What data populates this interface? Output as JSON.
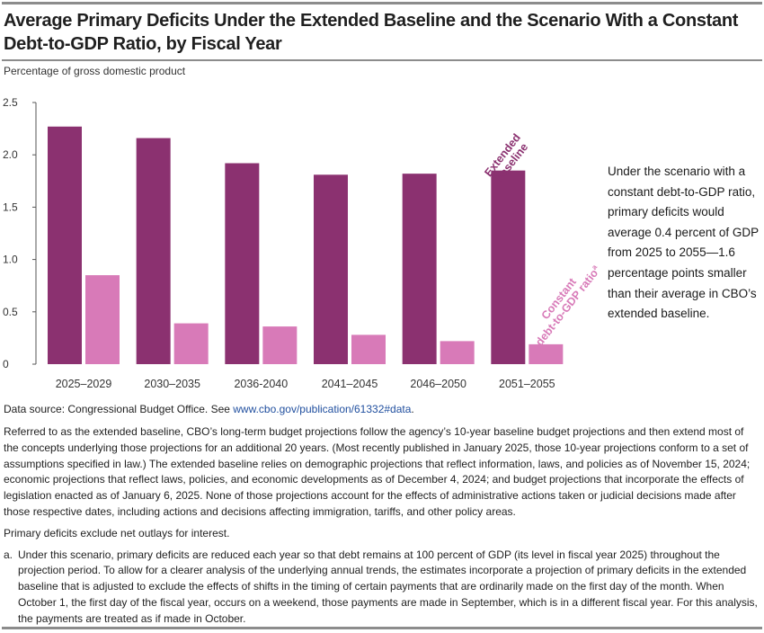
{
  "title": "Average Primary Deficits Under the Extended Baseline and the Scenario With a Constant Debt-to-GDP Ratio, by Fiscal Year",
  "units_label": "Percentage of gross domestic product",
  "annotation": "Under the scenario with a constant debt-to-GDP ratio, primary deficits would average 0.4 percent of GDP from 2025 to 2055—1.6 percentage points smaller than their average in CBO’s extended baseline.",
  "source": {
    "prefix": "Data source: Congressional Budget Office. See ",
    "link": "www.cbo.gov/publication/61332#data",
    "suffix": "."
  },
  "notes": {
    "extended_baseline": "Referred to as the extended baseline, CBO’s long-term budget projections follow the agency’s 10-year baseline budget projections and then extend most of the concepts underlying those projections for an additional 20 years. (Most recently published in January 2025, those 10-year projections conform to a set of assumptions specified in law.) The extended baseline relies on demographic projections that reflect information, laws, and policies as of November 15, 2024; economic projections that reflect laws, policies, and economic developments as of December 4, 2024; and budget projections that incorporate the effects of legislation enacted as of January 6, 2025. None of those projections account for the effects of administrative actions taken or judicial decisions made after those respective dates, including actions and decisions affecting immigration, tariffs, and other policy areas.",
    "primary_deficits": "Primary deficits exclude net outlays for interest.",
    "footnote_marker": "a.",
    "footnote_a": "Under this scenario, primary deficits are reduced each year so that debt remains at 100 percent of GDP (its level in fiscal year 2025) throughout the projection period. To allow for a clearer analysis of the underlying annual trends, the estimates incorporate a projection of primary deficits in the extended baseline that is adjusted to exclude the effects of shifts in the timing of certain payments that are ordinarily made on the first day of the month. When October 1, the first day of the fiscal year, occurs on a weekend, those payments are made in September, which is in a different fiscal year. For this analysis, the payments are treated as if made in October."
  },
  "colors": {
    "baseline": "#8b3170",
    "constant": "#d87ab8",
    "axis": "#555555"
  },
  "chart_data": {
    "type": "bar",
    "title": "Average Primary Deficits Under the Extended Baseline and the Scenario With a Constant Debt-to-GDP Ratio, by Fiscal Year",
    "ylabel": "Percentage of gross domestic product",
    "xlabel": "",
    "ylim": [
      0,
      2.5
    ],
    "yticks": [
      "0",
      "0.5",
      "1.0",
      "1.5",
      "2.0",
      "2.5"
    ],
    "categories": [
      "2025–2029",
      "2030–2035",
      "2036-2040",
      "2041–2045",
      "2046–2050",
      "2051–2055"
    ],
    "series": [
      {
        "name": "Extended baseline",
        "label_lines": [
          "Extended",
          "baseline"
        ],
        "values": [
          2.27,
          2.16,
          1.92,
          1.81,
          1.82,
          1.85
        ]
      },
      {
        "name": "Constant debt-to-GDP ratio",
        "label_lines": [
          "Constant",
          "debt-to-GDP ratio"
        ],
        "label_sup": "a",
        "values": [
          0.85,
          0.39,
          0.36,
          0.28,
          0.22,
          0.19
        ]
      }
    ],
    "grid": false
  }
}
